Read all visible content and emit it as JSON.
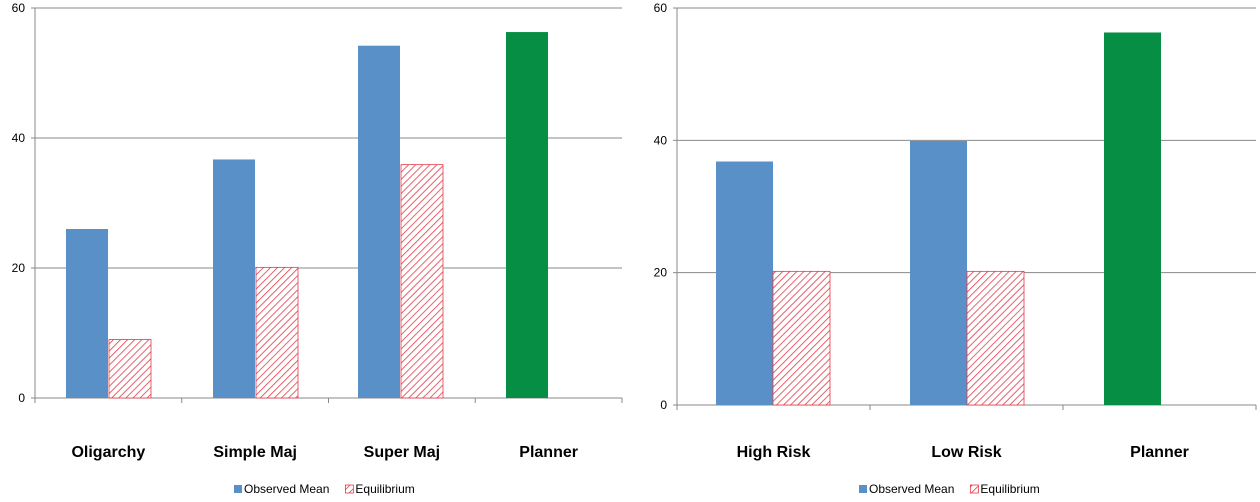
{
  "colors": {
    "observed": "#5990c8",
    "equilibrium_stroke": "#e23a48",
    "planner": "#068e45",
    "grid": "#888888",
    "axis": "#888888"
  },
  "chart_data": [
    {
      "type": "bar",
      "categories": [
        "Oligarchy",
        "Simple Maj",
        "Super Maj",
        "Planner"
      ],
      "ylim": [
        0,
        60
      ],
      "yticks": [
        0,
        20,
        40,
        60
      ],
      "grid": true,
      "legend_position": "bottom",
      "series": [
        {
          "name": "Observed Mean",
          "style": "observed",
          "values": [
            26,
            36.7,
            54.2,
            null
          ]
        },
        {
          "name": "Equilibrium",
          "style": "equilibrium",
          "values": [
            9,
            20.1,
            35.9,
            null
          ]
        },
        {
          "name": "",
          "style": "planner",
          "values": [
            null,
            null,
            null,
            56.3
          ]
        }
      ]
    },
    {
      "type": "bar",
      "categories": [
        "High Risk",
        "Low Risk",
        "Planner"
      ],
      "ylim": [
        0,
        60
      ],
      "yticks": [
        0,
        20,
        40,
        60
      ],
      "grid": true,
      "legend_position": "bottom",
      "series": [
        {
          "name": "Observed Mean",
          "style": "observed",
          "values": [
            36.8,
            39.9,
            null
          ]
        },
        {
          "name": "Equilibrium",
          "style": "equilibrium",
          "values": [
            20.2,
            20.2,
            null
          ]
        },
        {
          "name": "",
          "style": "planner",
          "values": [
            null,
            null,
            56.3
          ]
        }
      ]
    }
  ]
}
